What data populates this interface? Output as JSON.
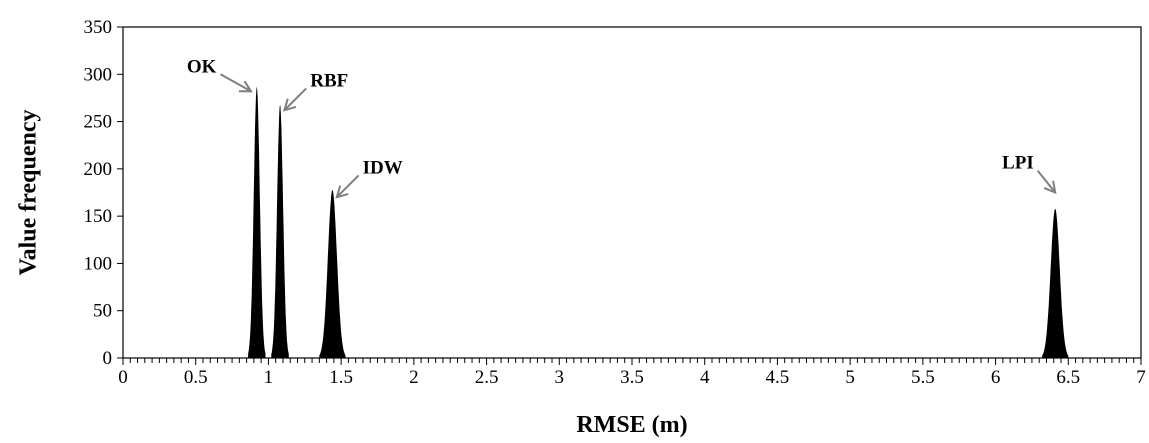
{
  "chart_data": {
    "type": "area",
    "title": "",
    "xlabel": "RMSE (m)",
    "ylabel": "Value frequency",
    "xlim": [
      0,
      7
    ],
    "ylim": [
      0,
      350
    ],
    "x_ticks": [
      0,
      0.5,
      1,
      1.5,
      2,
      2.5,
      3,
      3.5,
      4,
      4.5,
      5,
      5.5,
      6,
      6.5,
      7
    ],
    "x_tick_labels": [
      "0",
      "0.5",
      "1",
      "1.5",
      "2",
      "2.5",
      "3",
      "3.5",
      "4",
      "4.5",
      "5",
      "5.5",
      "6",
      "6.5",
      "7"
    ],
    "y_ticks": [
      0,
      50,
      100,
      150,
      200,
      250,
      300,
      350
    ],
    "y_tick_labels": [
      "0",
      "50",
      "100",
      "150",
      "200",
      "250",
      "300",
      "350"
    ],
    "grid": false,
    "legend": "none",
    "minor_x_tick_step": 0.05,
    "series": [
      {
        "name": "OK",
        "center": 0.92,
        "halfwidth": 0.06,
        "peak": 287,
        "color": "#000000"
      },
      {
        "name": "RBF",
        "center": 1.08,
        "halfwidth": 0.06,
        "peak": 268,
        "color": "#000000"
      },
      {
        "name": "IDW",
        "center": 1.44,
        "halfwidth": 0.09,
        "peak": 178,
        "color": "#000000"
      },
      {
        "name": "LPI",
        "center": 6.41,
        "halfwidth": 0.09,
        "peak": 158,
        "color": "#000000"
      }
    ],
    "annotations": [
      {
        "text": "OK",
        "target_x": 0.88,
        "target_y": 282,
        "arrow_from_x": 0.67,
        "arrow_from_y": 300
      },
      {
        "text": "RBF",
        "target_x": 1.11,
        "target_y": 262,
        "arrow_from_x": 1.26,
        "arrow_from_y": 285
      },
      {
        "text": "IDW",
        "target_x": 1.47,
        "target_y": 170,
        "arrow_from_x": 1.62,
        "arrow_from_y": 193
      },
      {
        "text": "LPI",
        "target_x": 6.41,
        "target_y": 175,
        "arrow_from_x": 6.29,
        "arrow_from_y": 198
      }
    ],
    "arrow_color": "#7f7f7f"
  }
}
